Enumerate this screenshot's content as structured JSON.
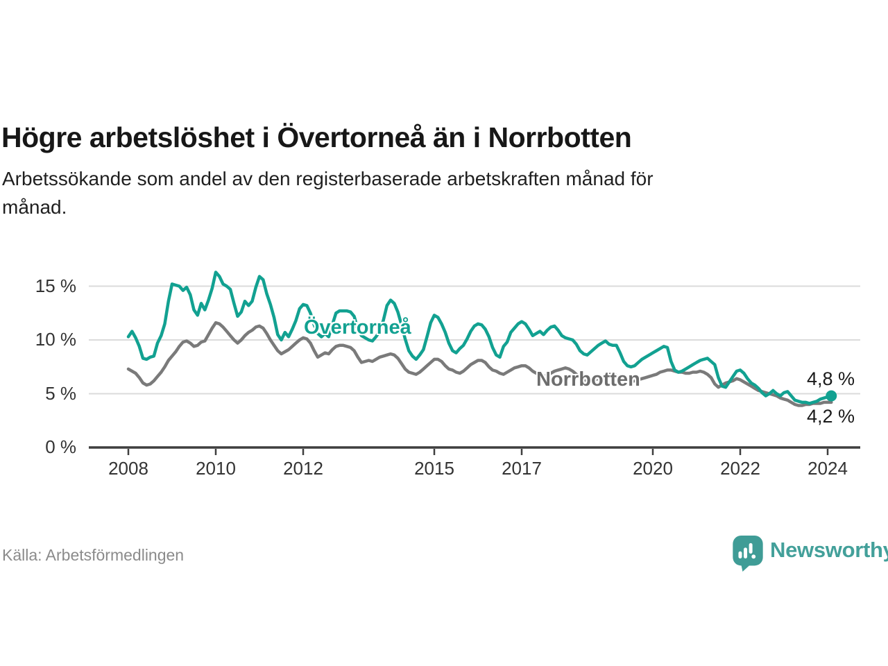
{
  "header": {
    "title": "Högre arbetslöshet i Övertorneå än i Norrbotten",
    "subtitle_line1": "Arbetssökande som andel av den registerbaserade arbetskraften månad för",
    "subtitle_line2": "månad."
  },
  "footer": {
    "source": "Källa: Arbetsförmedlingen",
    "brand": "Newsworthy",
    "brand_color": "#43a09a"
  },
  "chart_data": {
    "type": "line",
    "title": "Högre arbetslöshet i Övertorneå än i Norrbotten",
    "x_start": "2008-01",
    "x_end": "2024-02",
    "x_step": "1 month",
    "ylim": [
      0,
      17
    ],
    "grid": true,
    "legend": "inline-labels",
    "yticks": [
      {
        "label": "0 %",
        "value": 0
      },
      {
        "label": "5 %",
        "value": 5
      },
      {
        "label": "10 %",
        "value": 10
      },
      {
        "label": "15 %",
        "value": 15
      }
    ],
    "xticks": [
      {
        "label": "2008",
        "year": 2008
      },
      {
        "label": "2010",
        "year": 2010
      },
      {
        "label": "2012",
        "year": 2012
      },
      {
        "label": "2015",
        "year": 2015
      },
      {
        "label": "2017",
        "year": 2017
      },
      {
        "label": "2020",
        "year": 2020
      },
      {
        "label": "2022",
        "year": 2022
      },
      {
        "label": "2024",
        "year": 2024
      }
    ],
    "series": [
      {
        "name": "Övertorneå",
        "color": "#12a191",
        "end_label": "4,8 %",
        "end_dot": true,
        "values": [
          10.3,
          10.8,
          10.2,
          9.4,
          8.3,
          8.2,
          8.4,
          8.5,
          9.7,
          10.4,
          11.5,
          13.6,
          15.2,
          15.1,
          15.0,
          14.6,
          14.9,
          14.2,
          12.8,
          12.3,
          13.4,
          12.8,
          13.7,
          14.8,
          16.3,
          15.9,
          15.2,
          15.0,
          14.7,
          13.4,
          12.2,
          12.6,
          13.6,
          13.2,
          13.6,
          14.9,
          15.9,
          15.6,
          14.3,
          13.3,
          12.1,
          10.5,
          10.0,
          10.7,
          10.3,
          11.0,
          11.8,
          12.9,
          13.3,
          13.2,
          12.5,
          11.4,
          10.6,
          10.3,
          10.6,
          10.3,
          11.4,
          12.5,
          12.7,
          12.7,
          12.7,
          12.6,
          12.2,
          11.0,
          10.4,
          10.2,
          10.0,
          9.9,
          10.3,
          10.8,
          11.8,
          13.2,
          13.7,
          13.4,
          12.6,
          11.4,
          10.1,
          9.0,
          8.5,
          8.2,
          8.6,
          9.1,
          10.3,
          11.6,
          12.3,
          12.1,
          11.5,
          10.7,
          9.7,
          9.0,
          8.8,
          9.2,
          9.5,
          10.1,
          10.8,
          11.3,
          11.5,
          11.4,
          11.0,
          10.3,
          9.3,
          8.6,
          8.4,
          9.4,
          9.8,
          10.7,
          11.1,
          11.5,
          11.7,
          11.5,
          11.0,
          10.4,
          10.6,
          10.8,
          10.5,
          10.9,
          11.2,
          11.3,
          10.9,
          10.4,
          10.2,
          10.1,
          10.0,
          9.6,
          9.0,
          8.7,
          8.6,
          8.9,
          9.2,
          9.5,
          9.7,
          9.9,
          9.6,
          9.5,
          9.5,
          8.8,
          8.0,
          7.6,
          7.5,
          7.6,
          7.9,
          8.2,
          8.4,
          8.6,
          8.8,
          9.0,
          9.2,
          9.4,
          9.3,
          8.0,
          7.2,
          7.0,
          7.1,
          7.3,
          7.5,
          7.7,
          7.9,
          8.1,
          8.2,
          8.3,
          8.0,
          7.7,
          6.5,
          5.7,
          5.6,
          6.1,
          6.6,
          7.1,
          7.2,
          6.9,
          6.4,
          6.0,
          5.8,
          5.5,
          5.1,
          4.8,
          5.0,
          5.3,
          5.0,
          4.8,
          5.1,
          5.2,
          4.8,
          4.4,
          4.3,
          4.2,
          4.2,
          4.1,
          4.2,
          4.3,
          4.5,
          4.6,
          4.7,
          4.8
        ]
      },
      {
        "name": "Norrbotten",
        "color": "#7a7a7a",
        "end_label": "4,2 %",
        "end_dot": false,
        "values": [
          7.3,
          7.1,
          6.9,
          6.5,
          6.0,
          5.8,
          5.9,
          6.2,
          6.6,
          7.0,
          7.5,
          8.1,
          8.5,
          8.9,
          9.4,
          9.8,
          9.9,
          9.7,
          9.4,
          9.5,
          9.8,
          9.9,
          10.5,
          11.1,
          11.6,
          11.5,
          11.2,
          10.8,
          10.4,
          10.0,
          9.7,
          10.0,
          10.4,
          10.7,
          10.9,
          11.2,
          11.3,
          11.1,
          10.6,
          10.0,
          9.5,
          9.0,
          8.7,
          8.9,
          9.1,
          9.4,
          9.7,
          10.0,
          10.2,
          10.1,
          9.7,
          9.0,
          8.4,
          8.6,
          8.8,
          8.7,
          9.1,
          9.4,
          9.5,
          9.5,
          9.4,
          9.3,
          9.0,
          8.4,
          7.9,
          8.0,
          8.1,
          8.0,
          8.2,
          8.4,
          8.5,
          8.6,
          8.7,
          8.6,
          8.3,
          7.8,
          7.3,
          7.0,
          6.9,
          6.8,
          7.0,
          7.3,
          7.6,
          7.9,
          8.2,
          8.2,
          8.0,
          7.6,
          7.3,
          7.2,
          7.0,
          6.9,
          7.1,
          7.4,
          7.7,
          7.9,
          8.1,
          8.1,
          7.9,
          7.5,
          7.2,
          7.1,
          6.9,
          6.8,
          7.0,
          7.2,
          7.4,
          7.5,
          7.6,
          7.6,
          7.4,
          7.1,
          6.9,
          6.8,
          6.6,
          6.7,
          6.9,
          7.1,
          7.2,
          7.3,
          7.4,
          7.3,
          7.1,
          6.8,
          6.5,
          6.3,
          6.1,
          6.2,
          6.3,
          6.4,
          6.5,
          6.6,
          6.8,
          6.8,
          6.7,
          6.5,
          6.3,
          6.2,
          6.1,
          6.2,
          6.3,
          6.4,
          6.5,
          6.6,
          6.7,
          6.8,
          7.0,
          7.1,
          7.2,
          7.2,
          7.1,
          7.0,
          7.0,
          6.9,
          6.9,
          7.0,
          7.0,
          7.1,
          7.0,
          6.8,
          6.5,
          5.9,
          5.6,
          5.8,
          6.0,
          6.1,
          6.2,
          6.4,
          6.3,
          6.1,
          5.9,
          5.7,
          5.5,
          5.3,
          5.2,
          5.1,
          5.0,
          4.9,
          4.8,
          4.6,
          4.5,
          4.4,
          4.2,
          4.0,
          3.9,
          3.9,
          4.0,
          4.0,
          4.1,
          4.1,
          4.1,
          4.2,
          4.2,
          4.2
        ]
      }
    ],
    "axis_colors": {
      "grid": "#dbdbdb",
      "axis": "#3e3e3e",
      "tick_text": "#333333"
    }
  }
}
